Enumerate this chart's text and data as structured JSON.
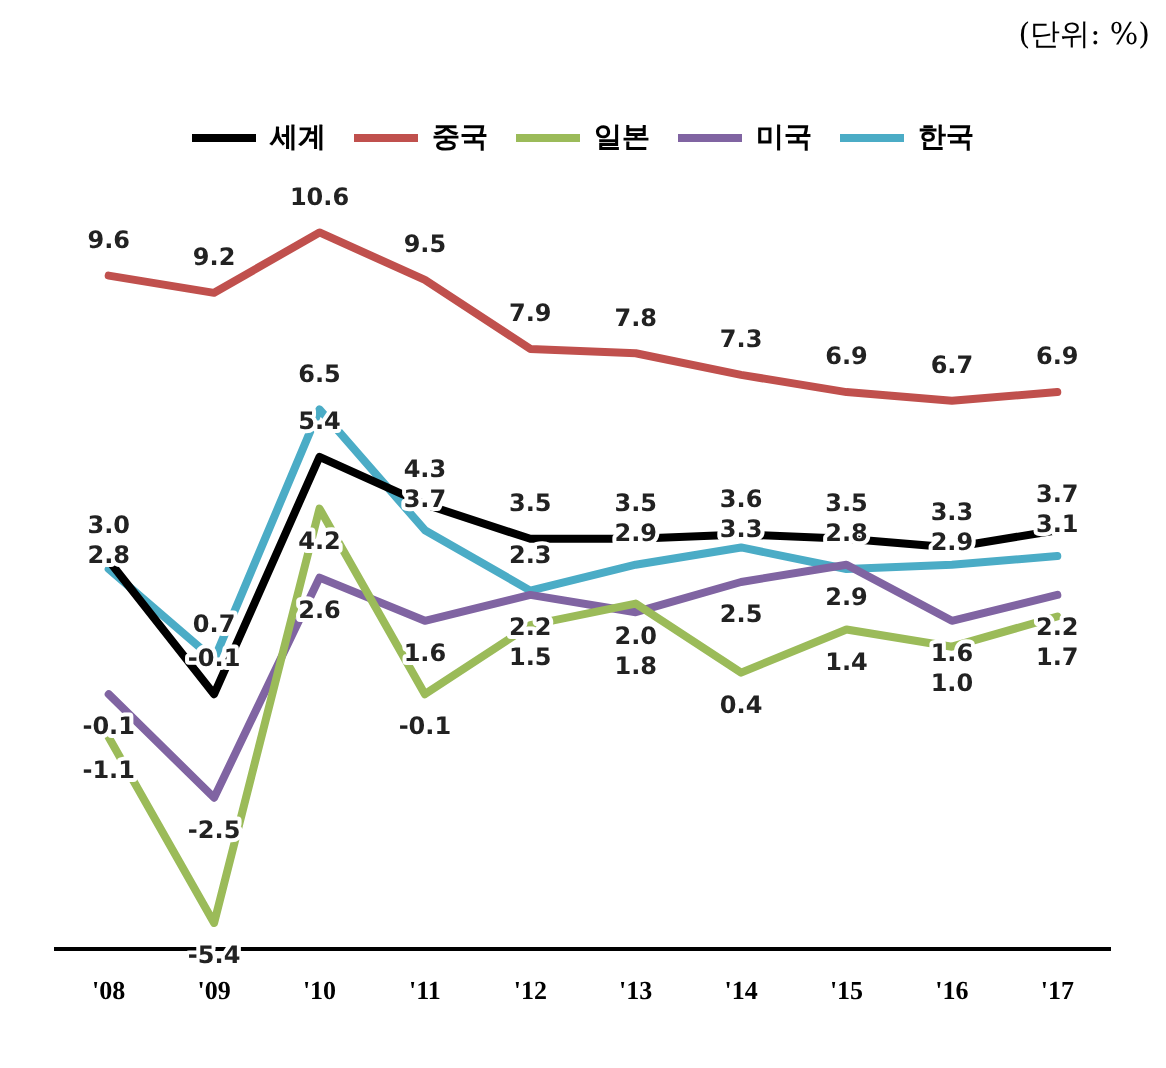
{
  "chart_data": {
    "type": "line",
    "annotations": [
      "(단위: %)"
    ],
    "categories": [
      "'08",
      "'09",
      "'10",
      "'11",
      "'12",
      "'13",
      "'14",
      "'15",
      "'16",
      "'17"
    ],
    "series": [
      {
        "name": "세계",
        "color": "#000000",
        "values": [
          3.0,
          -0.1,
          5.4,
          4.3,
          3.5,
          3.5,
          3.6,
          3.5,
          3.3,
          3.7
        ],
        "value_labels": [
          "3.0",
          "-0.1",
          "5.4",
          "4.3",
          "3.5",
          "3.5",
          "3.6",
          "3.5",
          "3.3",
          "3.7"
        ]
      },
      {
        "name": "중국",
        "color": "#c0504d",
        "values": [
          9.6,
          9.2,
          10.6,
          9.5,
          7.9,
          7.8,
          7.3,
          6.9,
          6.7,
          6.9
        ],
        "value_labels": [
          "9.6",
          "9.2",
          "10.6",
          "9.5",
          "7.9",
          "7.8",
          "7.3",
          "6.9",
          "6.7",
          "6.9"
        ]
      },
      {
        "name": "일본",
        "color": "#9bbb59",
        "values": [
          -1.1,
          -5.4,
          4.2,
          -0.1,
          1.5,
          2.0,
          0.4,
          1.4,
          1.0,
          1.7
        ],
        "value_labels": [
          "-1.1",
          "-5.4",
          "4.2",
          "-0.1",
          "1.5",
          "2.0",
          "0.4",
          "1.4",
          "1.0",
          "1.7"
        ]
      },
      {
        "name": "미국",
        "color": "#8064a2",
        "values": [
          -0.1,
          -2.5,
          2.6,
          1.6,
          2.2,
          1.8,
          2.5,
          2.9,
          1.6,
          2.2
        ],
        "value_labels": [
          "-0.1",
          "-2.5",
          "2.6",
          "1.6",
          "2.2",
          "1.8",
          "2.5",
          "2.9",
          "1.6",
          "2.2"
        ]
      },
      {
        "name": "한국",
        "color": "#4bacc6",
        "values": [
          2.8,
          0.7,
          6.5,
          3.7,
          2.3,
          2.9,
          3.3,
          2.8,
          2.9,
          3.1
        ],
        "value_labels": [
          "2.8",
          "0.7",
          "6.5",
          "3.7",
          "2.3",
          "2.9",
          "3.3",
          "2.8",
          "2.9",
          "3.1"
        ]
      }
    ],
    "tick_labels": "x",
    "grid": false,
    "legend": "top",
    "marker": "none",
    "line_style": "solid"
  }
}
